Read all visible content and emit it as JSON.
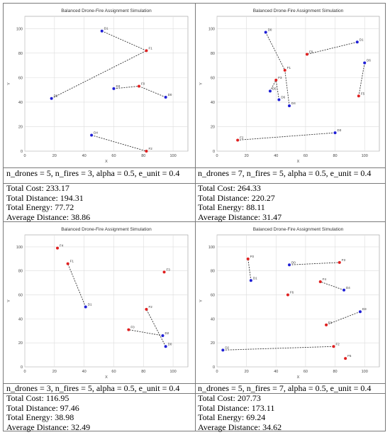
{
  "panels": [
    {
      "chart_data": {
        "type": "scatter",
        "title": "Balanced Drone-Fire Assignment Simulation",
        "xlabel": "X",
        "ylabel": "Y",
        "xlim": [
          0,
          110
        ],
        "ylim": [
          0,
          110
        ],
        "xticks": [
          0,
          20,
          40,
          60,
          80,
          100
        ],
        "yticks": [
          0,
          20,
          40,
          60,
          80,
          100
        ],
        "grid": true,
        "drones": [
          {
            "label": "D1",
            "x": 52,
            "y": 98
          },
          {
            "label": "D2",
            "x": 18,
            "y": 43
          },
          {
            "label": "D3",
            "x": 60,
            "y": 51
          },
          {
            "label": "D0",
            "x": 95,
            "y": 44
          },
          {
            "label": "D4",
            "x": 45,
            "y": 13
          }
        ],
        "fires": [
          {
            "label": "F1",
            "x": 82,
            "y": 82
          },
          {
            "label": "F0",
            "x": 77,
            "y": 53
          },
          {
            "label": "F2",
            "x": 82,
            "y": 0
          }
        ],
        "links": [
          {
            "from": [
              52,
              98
            ],
            "to": [
              82,
              82
            ]
          },
          {
            "from": [
              18,
              43
            ],
            "to": [
              82,
              82
            ]
          },
          {
            "from": [
              60,
              51
            ],
            "to": [
              77,
              53
            ]
          },
          {
            "from": [
              95,
              44
            ],
            "to": [
              77,
              53
            ]
          },
          {
            "from": [
              45,
              13
            ],
            "to": [
              82,
              0
            ]
          }
        ]
      },
      "caption": "n_drones = 5, n_fires = 3, alpha = 0.5, e_unit = 0.4",
      "stats": [
        "Total Cost: 233.17",
        "Total Distance: 194.31",
        "Total Energy: 77.72",
        "Average Distance: 38.86"
      ]
    },
    {
      "chart_data": {
        "type": "scatter",
        "title": "Balanced Drone-Fire Assignment Simulation",
        "xlabel": "X",
        "ylabel": "Y",
        "xlim": [
          0,
          110
        ],
        "ylim": [
          0,
          110
        ],
        "xticks": [
          0,
          20,
          40,
          60,
          80,
          100
        ],
        "yticks": [
          0,
          20,
          40,
          60,
          80,
          100
        ],
        "grid": true,
        "drones": [
          {
            "label": "D0",
            "x": 33,
            "y": 97
          },
          {
            "label": "D1",
            "x": 95,
            "y": 89
          },
          {
            "label": "D6",
            "x": 100,
            "y": 72
          },
          {
            "label": "D5",
            "x": 36,
            "y": 49
          },
          {
            "label": "D6",
            "x": 42,
            "y": 42
          },
          {
            "label": "D4",
            "x": 49,
            "y": 37
          },
          {
            "label": "D3",
            "x": 80,
            "y": 15
          }
        ],
        "fires": [
          {
            "label": "F0",
            "x": 61,
            "y": 79
          },
          {
            "label": "F1",
            "x": 46,
            "y": 66
          },
          {
            "label": "F3",
            "x": 40,
            "y": 58
          },
          {
            "label": "F5",
            "x": 96,
            "y": 45
          },
          {
            "label": "F2",
            "x": 14,
            "y": 9
          }
        ],
        "links": [
          {
            "from": [
              33,
              97
            ],
            "to": [
              46,
              66
            ]
          },
          {
            "from": [
              95,
              89
            ],
            "to": [
              61,
              79
            ]
          },
          {
            "from": [
              100,
              72
            ],
            "to": [
              96,
              45
            ]
          },
          {
            "from": [
              36,
              49
            ],
            "to": [
              40,
              58
            ]
          },
          {
            "from": [
              42,
              42
            ],
            "to": [
              40,
              58
            ]
          },
          {
            "from": [
              49,
              37
            ],
            "to": [
              46,
              66
            ]
          },
          {
            "from": [
              80,
              15
            ],
            "to": [
              14,
              9
            ]
          }
        ]
      },
      "caption": "n_drones = 7, n_fires = 5, alpha = 0.5, e_unit = 0.4",
      "stats": [
        "Total Cost: 264.33",
        "Total Distance: 220.27",
        "Total Energy: 88.11",
        "Average Distance: 31.47"
      ]
    },
    {
      "chart_data": {
        "type": "scatter",
        "title": "Balanced Drone-Fire Assignment Simulation",
        "xlabel": "X",
        "ylabel": "Y",
        "xlim": [
          0,
          110
        ],
        "ylim": [
          0,
          110
        ],
        "xticks": [
          0,
          20,
          40,
          60,
          80,
          100
        ],
        "yticks": [
          0,
          20,
          40,
          60,
          80,
          100
        ],
        "grid": true,
        "drones": [
          {
            "label": "D1",
            "x": 41,
            "y": 50
          },
          {
            "label": "D2",
            "x": 93,
            "y": 26
          },
          {
            "label": "D0",
            "x": 95,
            "y": 17
          }
        ],
        "fires": [
          {
            "label": "F4",
            "x": 22,
            "y": 99
          },
          {
            "label": "F1",
            "x": 29,
            "y": 86
          },
          {
            "label": "F3",
            "x": 94,
            "y": 79
          },
          {
            "label": "F2",
            "x": 82,
            "y": 48
          },
          {
            "label": "F0",
            "x": 70,
            "y": 31
          }
        ],
        "links": [
          {
            "from": [
              41,
              50
            ],
            "to": [
              29,
              86
            ]
          },
          {
            "from": [
              93,
              26
            ],
            "to": [
              70,
              31
            ]
          },
          {
            "from": [
              95,
              17
            ],
            "to": [
              82,
              48
            ]
          }
        ]
      },
      "caption": "n_drones = 3, n_fires = 5, alpha = 0.5, e_unit = 0.4",
      "stats": [
        "Total Cost: 116.95",
        "Total Distance: 97.46",
        "Total Energy: 38.98",
        "Average Distance: 32.49"
      ]
    },
    {
      "chart_data": {
        "type": "scatter",
        "title": "Balanced Drone-Fire Assignment Simulation",
        "xlabel": "X",
        "ylabel": "Y",
        "xlim": [
          0,
          110
        ],
        "ylim": [
          0,
          110
        ],
        "xticks": [
          0,
          20,
          40,
          60,
          80,
          100
        ],
        "yticks": [
          0,
          20,
          40,
          60,
          80,
          100
        ],
        "grid": true,
        "drones": [
          {
            "label": "D1",
            "x": 23,
            "y": 72
          },
          {
            "label": "D0",
            "x": 49,
            "y": 85
          },
          {
            "label": "D4",
            "x": 86,
            "y": 64
          },
          {
            "label": "D3",
            "x": 97,
            "y": 46
          },
          {
            "label": "D2",
            "x": 4,
            "y": 14
          }
        ],
        "fires": [
          {
            "label": "F0",
            "x": 21,
            "y": 90
          },
          {
            "label": "F3",
            "x": 83,
            "y": 87
          },
          {
            "label": "F4",
            "x": 70,
            "y": 71
          },
          {
            "label": "F6",
            "x": 48,
            "y": 60
          },
          {
            "label": "F1",
            "x": 74,
            "y": 35
          },
          {
            "label": "F2",
            "x": 79,
            "y": 17
          },
          {
            "label": "F5",
            "x": 87,
            "y": 7
          }
        ],
        "links": [
          {
            "from": [
              23,
              72
            ],
            "to": [
              21,
              90
            ]
          },
          {
            "from": [
              49,
              85
            ],
            "to": [
              83,
              87
            ]
          },
          {
            "from": [
              86,
              64
            ],
            "to": [
              70,
              71
            ]
          },
          {
            "from": [
              97,
              46
            ],
            "to": [
              74,
              35
            ]
          },
          {
            "from": [
              4,
              14
            ],
            "to": [
              79,
              17
            ]
          }
        ]
      },
      "caption": "n_drones = 5, n_fires = 7, alpha = 0.5, e_unit = 0.4",
      "stats": [
        "Total Cost: 207.73",
        "Total Distance: 173.11",
        "Total Energy: 69.24",
        "Average Distance: 34.62"
      ]
    }
  ],
  "colors": {
    "drone": "#1f1fd6",
    "fire": "#e01f1f",
    "link": "#333333",
    "grid": "#dcdcdc"
  }
}
